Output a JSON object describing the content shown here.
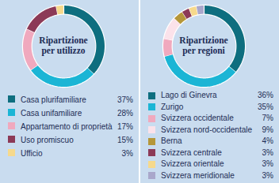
{
  "chart_data": [
    {
      "type": "donut",
      "title": "Ripartizione per utilizzo",
      "categories": [
        "Casa plurifamiliare",
        "Casa unifamiliare",
        "Appartamento di proprietà",
        "Uso promiscuo",
        "Ufficio"
      ],
      "values": [
        37,
        28,
        17,
        15,
        3
      ],
      "value_labels": [
        "37%",
        "28%",
        "17%",
        "15%",
        "3%"
      ],
      "colors": [
        "#0e6e7f",
        "#1bb5d5",
        "#f0a9be",
        "#8c3a57",
        "#f6d98c"
      ]
    },
    {
      "type": "donut",
      "title": "Ripartizione per regioni",
      "categories": [
        "Lago di Ginevra",
        "Zurigo",
        "Svizzera occidentale",
        "Svizzera nord-occidentale",
        "Berna",
        "Svizzera centrale",
        "Svizzera orientale",
        "Svizzera meridionale"
      ],
      "values": [
        36,
        35,
        7,
        9,
        4,
        3,
        3,
        3
      ],
      "value_labels": [
        "36%",
        "35%",
        "7%",
        "9%",
        "4%",
        "3%",
        "3%",
        "3%"
      ],
      "colors": [
        "#0e6e7f",
        "#1bb5d5",
        "#f0a9be",
        "#fbe2ea",
        "#b5973a",
        "#8c3a57",
        "#f6d98c",
        "#a9a7cb"
      ]
    }
  ]
}
